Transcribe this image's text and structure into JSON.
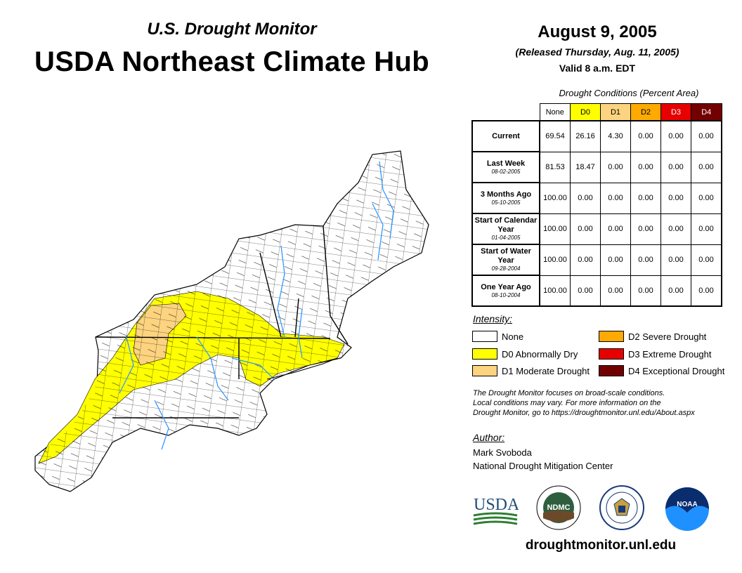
{
  "header": {
    "subtitle": "U.S. Drought Monitor",
    "title": "USDA Northeast Climate Hub",
    "date": "August 9, 2005",
    "released": "(Released Thursday, Aug. 11, 2005)",
    "valid": "Valid 8 a.m. EDT"
  },
  "table": {
    "caption": "Drought Conditions (Percent Area)",
    "columns": [
      "None",
      "D0",
      "D1",
      "D2",
      "D3",
      "D4"
    ],
    "column_colors": [
      "#ffffff",
      "#ffff00",
      "#fcd37f",
      "#ffaa00",
      "#e60000",
      "#730000"
    ],
    "column_text_colors": [
      "#000000",
      "#000000",
      "#000000",
      "#000000",
      "#ffffff",
      "#ffffff"
    ],
    "rows": [
      {
        "label": "Current",
        "date": "",
        "values": [
          "69.54",
          "26.16",
          "4.30",
          "0.00",
          "0.00",
          "0.00"
        ]
      },
      {
        "label": "Last Week",
        "date": "08-02-2005",
        "values": [
          "81.53",
          "18.47",
          "0.00",
          "0.00",
          "0.00",
          "0.00"
        ]
      },
      {
        "label": "3 Months Ago",
        "date": "05-10-2005",
        "values": [
          "100.00",
          "0.00",
          "0.00",
          "0.00",
          "0.00",
          "0.00"
        ]
      },
      {
        "label": "Start of Calendar Year",
        "date": "01-04-2005",
        "values": [
          "100.00",
          "0.00",
          "0.00",
          "0.00",
          "0.00",
          "0.00"
        ]
      },
      {
        "label": "Start of Water Year",
        "date": "09-28-2004",
        "values": [
          "100.00",
          "0.00",
          "0.00",
          "0.00",
          "0.00",
          "0.00"
        ]
      },
      {
        "label": "One Year Ago",
        "date": "08-10-2004",
        "values": [
          "100.00",
          "0.00",
          "0.00",
          "0.00",
          "0.00",
          "0.00"
        ]
      }
    ]
  },
  "legend": {
    "heading": "Intensity:",
    "items": [
      {
        "label": "None",
        "color": "#ffffff"
      },
      {
        "label": "D0 Abnormally Dry",
        "color": "#ffff00"
      },
      {
        "label": "D1 Moderate Drought",
        "color": "#fcd37f"
      },
      {
        "label": "D2 Severe Drought",
        "color": "#ffaa00"
      },
      {
        "label": "D3 Extreme Drought",
        "color": "#e60000"
      },
      {
        "label": "D4 Exceptional Drought",
        "color": "#730000"
      }
    ]
  },
  "note": {
    "line1": "The Drought Monitor focuses on broad-scale conditions.",
    "line2": "Local conditions may vary. For more information on the",
    "line3": "Drought Monitor, go to https://droughtmonitor.unl.edu/About.aspx"
  },
  "author": {
    "heading": "Author:",
    "name": "Mark Svoboda",
    "org": "National Drought Mitigation Center"
  },
  "logos": {
    "usda": "USDA",
    "ndmc": "NDMC",
    "noaa": "NOAA"
  },
  "website": "droughtmonitor.unl.edu",
  "map_colors": {
    "water": "#3399ff",
    "d0": "#ffff00",
    "d1": "#fcd37f",
    "none": "#ffffff"
  }
}
